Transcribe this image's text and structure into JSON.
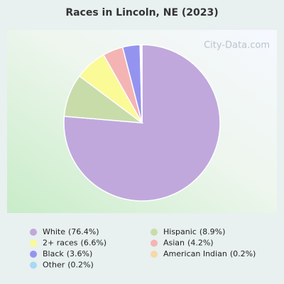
{
  "chart_data": {
    "type": "pie",
    "title": "Races in Lincoln, NE (2023)",
    "watermark": "City-Data.com",
    "categories": [
      "White",
      "Hispanic",
      "2+ races",
      "Asian",
      "Black",
      "American Indian",
      "Other"
    ],
    "values": [
      76.4,
      8.9,
      6.6,
      4.2,
      3.6,
      0.2,
      0.2
    ],
    "value_labels": [
      "(76.4%)",
      "(8.9%)",
      "(6.6%)",
      "(4.2%)",
      "(3.6%)",
      "(0.2%)",
      "(0.2%)"
    ],
    "colors": [
      "#c0a8dc",
      "#c8dcaa",
      "#fafa96",
      "#f5b4b4",
      "#9494f0",
      "#f5d9a8",
      "#a9d8f2"
    ]
  }
}
